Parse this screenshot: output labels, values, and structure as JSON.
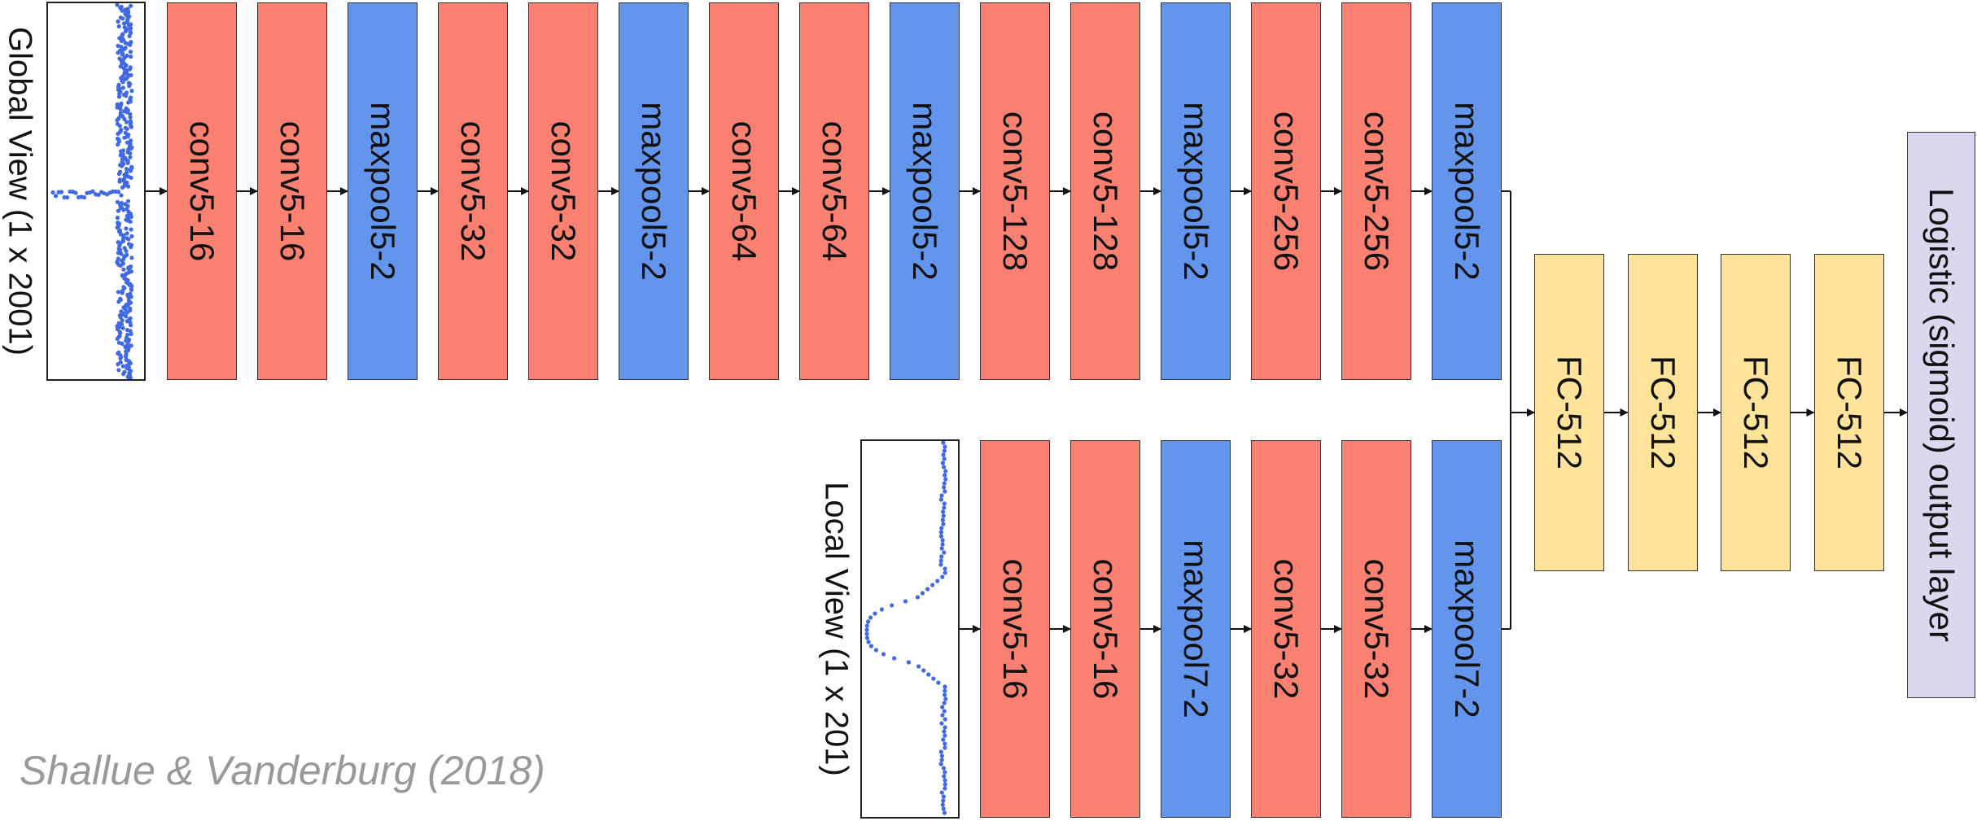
{
  "colors": {
    "conv": "#fa8072",
    "maxpool": "#6495ed",
    "fc": "#fde49a",
    "output": "#dcd6ee",
    "curve": "#4169e1",
    "citation": "#999999"
  },
  "global_view": {
    "label": "Global View (1 x 2001)",
    "layers": [
      {
        "label": "conv5-16",
        "kind": "conv"
      },
      {
        "label": "conv5-16",
        "kind": "conv"
      },
      {
        "label": "maxpool5-2",
        "kind": "maxpool"
      },
      {
        "label": "conv5-32",
        "kind": "conv"
      },
      {
        "label": "conv5-32",
        "kind": "conv"
      },
      {
        "label": "maxpool5-2",
        "kind": "maxpool"
      },
      {
        "label": "conv5-64",
        "kind": "conv"
      },
      {
        "label": "conv5-64",
        "kind": "conv"
      },
      {
        "label": "maxpool5-2",
        "kind": "maxpool"
      },
      {
        "label": "conv5-128",
        "kind": "conv"
      },
      {
        "label": "conv5-128",
        "kind": "conv"
      },
      {
        "label": "maxpool5-2",
        "kind": "maxpool"
      },
      {
        "label": "conv5-256",
        "kind": "conv"
      },
      {
        "label": "conv5-256",
        "kind": "conv"
      },
      {
        "label": "maxpool5-2",
        "kind": "maxpool"
      }
    ]
  },
  "local_view": {
    "label": "Local View (1 x 201)",
    "layers": [
      {
        "label": "conv5-16",
        "kind": "conv"
      },
      {
        "label": "conv5-16",
        "kind": "conv"
      },
      {
        "label": "maxpool7-2",
        "kind": "maxpool"
      },
      {
        "label": "conv5-32",
        "kind": "conv"
      },
      {
        "label": "conv5-32",
        "kind": "conv"
      },
      {
        "label": "maxpool7-2",
        "kind": "maxpool"
      }
    ]
  },
  "fc_layers": [
    {
      "label": "FC-512",
      "kind": "fc"
    },
    {
      "label": "FC-512",
      "kind": "fc"
    },
    {
      "label": "FC-512",
      "kind": "fc"
    },
    {
      "label": "FC-512",
      "kind": "fc"
    }
  ],
  "output_layer": {
    "label": "Logistic (sigmoid) output layer",
    "kind": "output"
  },
  "citation": "Shallue & Vanderburg (2018)"
}
